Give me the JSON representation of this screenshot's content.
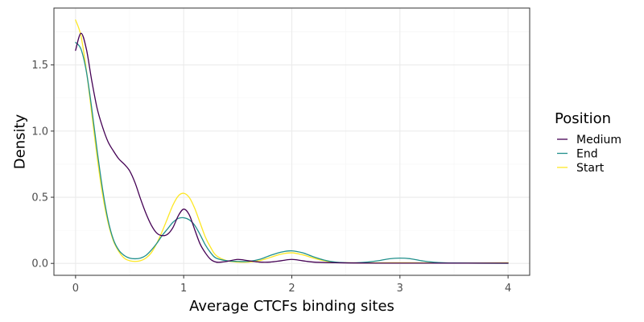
{
  "chart_data": {
    "type": "line",
    "title": "",
    "xlabel": "Average CTCFs binding sites",
    "ylabel": "Density",
    "xlim": [
      -0.2,
      4.2
    ],
    "ylim": [
      -0.09,
      1.93
    ],
    "x_ticks": [
      0,
      1,
      2,
      3,
      4
    ],
    "x_tick_labels": [
      "0",
      "1",
      "2",
      "3",
      "4"
    ],
    "y_ticks": [
      0.0,
      0.5,
      1.0,
      1.5
    ],
    "y_tick_labels": [
      "0.0",
      "0.5",
      "1.0",
      "1.5"
    ],
    "grid": true,
    "legend": {
      "title": "Position",
      "placement": "right"
    },
    "series": [
      {
        "name": "Medium",
        "color": "#440154",
        "points": [
          [
            0.0,
            1.61
          ],
          [
            0.05,
            1.74
          ],
          [
            0.1,
            1.62
          ],
          [
            0.15,
            1.38
          ],
          [
            0.2,
            1.17
          ],
          [
            0.25,
            1.03
          ],
          [
            0.3,
            0.92
          ],
          [
            0.35,
            0.85
          ],
          [
            0.4,
            0.79
          ],
          [
            0.45,
            0.75
          ],
          [
            0.5,
            0.7
          ],
          [
            0.55,
            0.61
          ],
          [
            0.6,
            0.49
          ],
          [
            0.65,
            0.38
          ],
          [
            0.7,
            0.29
          ],
          [
            0.75,
            0.23
          ],
          [
            0.8,
            0.21
          ],
          [
            0.85,
            0.22
          ],
          [
            0.9,
            0.27
          ],
          [
            0.95,
            0.36
          ],
          [
            1.0,
            0.41
          ],
          [
            1.05,
            0.37
          ],
          [
            1.1,
            0.26
          ],
          [
            1.15,
            0.15
          ],
          [
            1.2,
            0.08
          ],
          [
            1.25,
            0.03
          ],
          [
            1.3,
            0.01
          ],
          [
            1.35,
            0.01
          ],
          [
            1.4,
            0.015
          ],
          [
            1.5,
            0.03
          ],
          [
            1.6,
            0.02
          ],
          [
            1.7,
            0.01
          ],
          [
            1.8,
            0.01
          ],
          [
            1.9,
            0.02
          ],
          [
            2.0,
            0.03
          ],
          [
            2.1,
            0.02
          ],
          [
            2.2,
            0.01
          ],
          [
            2.4,
            0.005
          ],
          [
            2.6,
            0.003
          ],
          [
            2.8,
            0.002
          ],
          [
            3.0,
            0.002
          ],
          [
            3.5,
            0.002
          ],
          [
            4.0,
            0.002
          ]
        ]
      },
      {
        "name": "End",
        "color": "#21908c",
        "points": [
          [
            0.0,
            1.67
          ],
          [
            0.05,
            1.62
          ],
          [
            0.1,
            1.45
          ],
          [
            0.15,
            1.17
          ],
          [
            0.2,
            0.85
          ],
          [
            0.25,
            0.56
          ],
          [
            0.3,
            0.33
          ],
          [
            0.35,
            0.18
          ],
          [
            0.4,
            0.1
          ],
          [
            0.45,
            0.06
          ],
          [
            0.5,
            0.04
          ],
          [
            0.55,
            0.035
          ],
          [
            0.6,
            0.04
          ],
          [
            0.65,
            0.06
          ],
          [
            0.7,
            0.1
          ],
          [
            0.75,
            0.15
          ],
          [
            0.8,
            0.21
          ],
          [
            0.85,
            0.26
          ],
          [
            0.9,
            0.31
          ],
          [
            0.95,
            0.34
          ],
          [
            1.0,
            0.345
          ],
          [
            1.05,
            0.33
          ],
          [
            1.1,
            0.29
          ],
          [
            1.15,
            0.22
          ],
          [
            1.2,
            0.14
          ],
          [
            1.25,
            0.08
          ],
          [
            1.3,
            0.04
          ],
          [
            1.4,
            0.02
          ],
          [
            1.5,
            0.015
          ],
          [
            1.6,
            0.015
          ],
          [
            1.7,
            0.03
          ],
          [
            1.8,
            0.06
          ],
          [
            1.9,
            0.085
          ],
          [
            2.0,
            0.095
          ],
          [
            2.1,
            0.08
          ],
          [
            2.2,
            0.05
          ],
          [
            2.3,
            0.025
          ],
          [
            2.4,
            0.01
          ],
          [
            2.5,
            0.005
          ],
          [
            2.6,
            0.005
          ],
          [
            2.7,
            0.01
          ],
          [
            2.8,
            0.02
          ],
          [
            2.9,
            0.035
          ],
          [
            3.0,
            0.04
          ],
          [
            3.1,
            0.035
          ],
          [
            3.2,
            0.02
          ],
          [
            3.3,
            0.01
          ],
          [
            3.5,
            0.003
          ],
          [
            4.0,
            0.001
          ]
        ]
      },
      {
        "name": "Start",
        "color": "#fde725",
        "points": [
          [
            0.0,
            1.84
          ],
          [
            0.05,
            1.72
          ],
          [
            0.1,
            1.46
          ],
          [
            0.15,
            1.13
          ],
          [
            0.2,
            0.8
          ],
          [
            0.25,
            0.52
          ],
          [
            0.3,
            0.31
          ],
          [
            0.35,
            0.17
          ],
          [
            0.4,
            0.09
          ],
          [
            0.45,
            0.04
          ],
          [
            0.5,
            0.02
          ],
          [
            0.55,
            0.015
          ],
          [
            0.6,
            0.02
          ],
          [
            0.65,
            0.04
          ],
          [
            0.7,
            0.08
          ],
          [
            0.75,
            0.15
          ],
          [
            0.8,
            0.24
          ],
          [
            0.85,
            0.34
          ],
          [
            0.9,
            0.44
          ],
          [
            0.95,
            0.51
          ],
          [
            1.0,
            0.53
          ],
          [
            1.05,
            0.5
          ],
          [
            1.1,
            0.42
          ],
          [
            1.15,
            0.31
          ],
          [
            1.2,
            0.2
          ],
          [
            1.25,
            0.12
          ],
          [
            1.3,
            0.06
          ],
          [
            1.4,
            0.02
          ],
          [
            1.5,
            0.01
          ],
          [
            1.6,
            0.01
          ],
          [
            1.7,
            0.02
          ],
          [
            1.8,
            0.045
          ],
          [
            1.9,
            0.07
          ],
          [
            2.0,
            0.08
          ],
          [
            2.1,
            0.065
          ],
          [
            2.2,
            0.04
          ],
          [
            2.3,
            0.02
          ],
          [
            2.4,
            0.008
          ],
          [
            2.6,
            0.004
          ],
          [
            2.8,
            0.004
          ],
          [
            3.0,
            0.005
          ],
          [
            3.2,
            0.004
          ],
          [
            3.5,
            0.003
          ],
          [
            4.0,
            0.005
          ]
        ]
      }
    ]
  }
}
